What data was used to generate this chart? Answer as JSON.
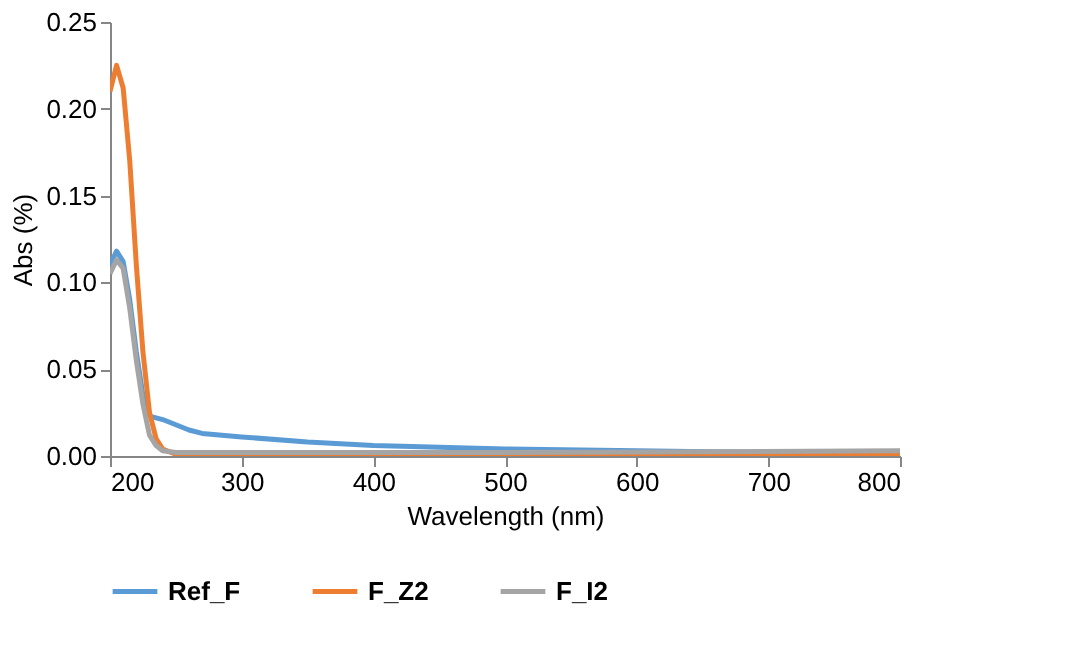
{
  "chart_data": {
    "type": "line",
    "xlabel": "Wavelength (nm)",
    "ylabel": "Abs (%)",
    "xlim": [
      200,
      800
    ],
    "xticks": [
      200,
      300,
      400,
      500,
      600,
      700,
      800
    ],
    "ylim": [
      0,
      0.25
    ],
    "yticks": [
      {
        "value": 0,
        "label": "0.00"
      },
      {
        "value": 0.05,
        "label": "0.05"
      },
      {
        "value": 0.1,
        "label": "0.10"
      },
      {
        "value": 0.15,
        "label": "0.15"
      },
      {
        "value": 0.2,
        "label": "0.20"
      },
      {
        "value": 0.25,
        "label": "0.25"
      }
    ],
    "grid": false,
    "legend": "bottom",
    "marker": "none",
    "line_style": "solid",
    "series": [
      {
        "name": "Ref_F",
        "color": "#5b9bd5",
        "x": [
          200,
          205,
          210,
          215,
          220,
          225,
          230,
          240,
          250,
          260,
          270,
          300,
          350,
          400,
          450,
          500,
          600,
          700,
          800
        ],
        "values": [
          0.11,
          0.118,
          0.112,
          0.09,
          0.06,
          0.035,
          0.023,
          0.021,
          0.018,
          0.015,
          0.013,
          0.011,
          0.008,
          0.006,
          0.005,
          0.004,
          0.003,
          0.002,
          0.002
        ]
      },
      {
        "name": "F_Z2",
        "color": "#ed7d31",
        "x": [
          200,
          205,
          210,
          215,
          220,
          225,
          230,
          235,
          240,
          250,
          300,
          500,
          800
        ],
        "values": [
          0.21,
          0.225,
          0.212,
          0.17,
          0.11,
          0.06,
          0.025,
          0.01,
          0.004,
          0.001,
          0.0,
          0.0,
          0.001
        ]
      },
      {
        "name": "F_I2",
        "color": "#a5a5a5",
        "x": [
          200,
          205,
          210,
          215,
          220,
          225,
          230,
          235,
          240,
          250,
          300,
          500,
          800
        ],
        "values": [
          0.105,
          0.113,
          0.108,
          0.085,
          0.055,
          0.03,
          0.012,
          0.006,
          0.003,
          0.002,
          0.002,
          0.002,
          0.003
        ]
      }
    ]
  }
}
